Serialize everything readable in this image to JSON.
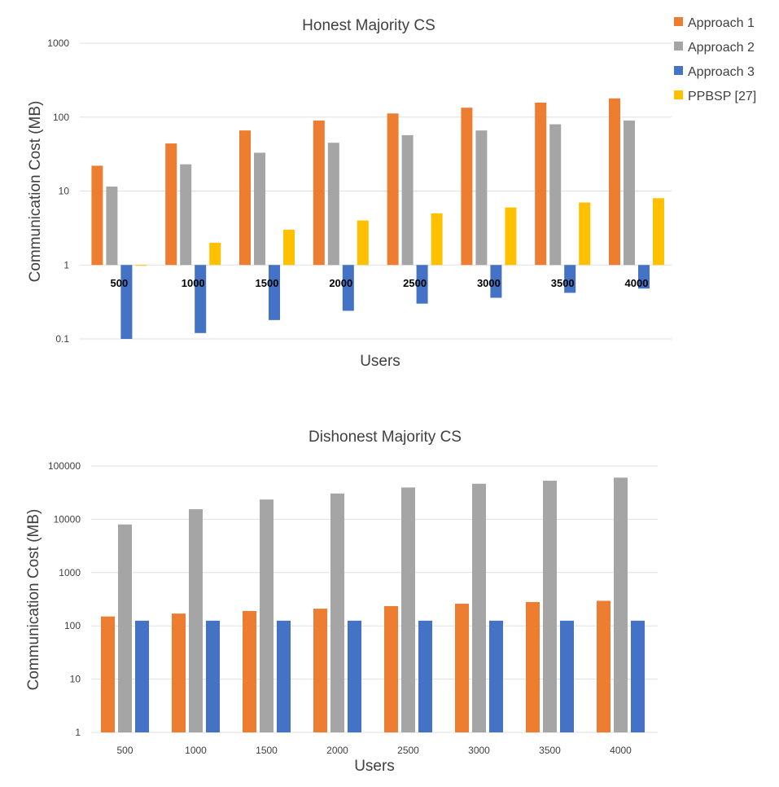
{
  "colors": {
    "approach1": "#ED7D31",
    "approach2": "#A5A5A5",
    "approach3": "#4472C4",
    "ppbsp": "#FFC000"
  },
  "chart_data": [
    {
      "type": "bar",
      "title": "Honest Majority CS",
      "xlabel": "Users",
      "ylabel": "Communication Cost (MB)",
      "yscale": "log",
      "ylim": [
        0.1,
        1000
      ],
      "yticks": [
        "0.1",
        "1",
        "10",
        "100",
        "1000"
      ],
      "baseline": 1,
      "categories": [
        "500",
        "1000",
        "1500",
        "2000",
        "2500",
        "3000",
        "3500",
        "4000"
      ],
      "series": [
        {
          "name": "Approach 1",
          "color_key": "approach1",
          "values": [
            22,
            44,
            66,
            90,
            112,
            134,
            157,
            179
          ]
        },
        {
          "name": "Approach 2",
          "color_key": "approach2",
          "values": [
            11.5,
            23,
            33,
            45,
            57,
            66,
            80,
            90
          ]
        },
        {
          "name": "Approach 3",
          "color_key": "approach3",
          "values": [
            0.1,
            0.12,
            0.18,
            0.24,
            0.3,
            0.36,
            0.42,
            0.48
          ]
        },
        {
          "name": "PPBSP [27]",
          "color_key": "ppbsp",
          "values": [
            0.98,
            2,
            3,
            4,
            5,
            6,
            7,
            8
          ]
        }
      ],
      "legend": "top-right"
    },
    {
      "type": "bar",
      "title": "Dishonest Majority CS",
      "xlabel": "Users",
      "ylabel": "Communication Cost (MB)",
      "yscale": "log",
      "ylim": [
        1,
        100000
      ],
      "yticks": [
        "1",
        "10",
        "100",
        "1000",
        "10000",
        "100000"
      ],
      "baseline": 1,
      "categories": [
        "500",
        "1000",
        "1500",
        "2000",
        "2500",
        "3000",
        "3500",
        "4000"
      ],
      "series": [
        {
          "name": "Approach 1",
          "color_key": "approach1",
          "values": [
            150,
            170,
            190,
            210,
            235,
            260,
            280,
            295
          ]
        },
        {
          "name": "Approach 2",
          "color_key": "approach2",
          "values": [
            8000,
            15500,
            23500,
            30500,
            39500,
            46500,
            53000,
            60500
          ]
        },
        {
          "name": "Approach 3",
          "color_key": "approach3",
          "values": [
            125,
            125,
            125,
            125,
            125,
            125,
            125,
            125
          ]
        }
      ]
    }
  ]
}
